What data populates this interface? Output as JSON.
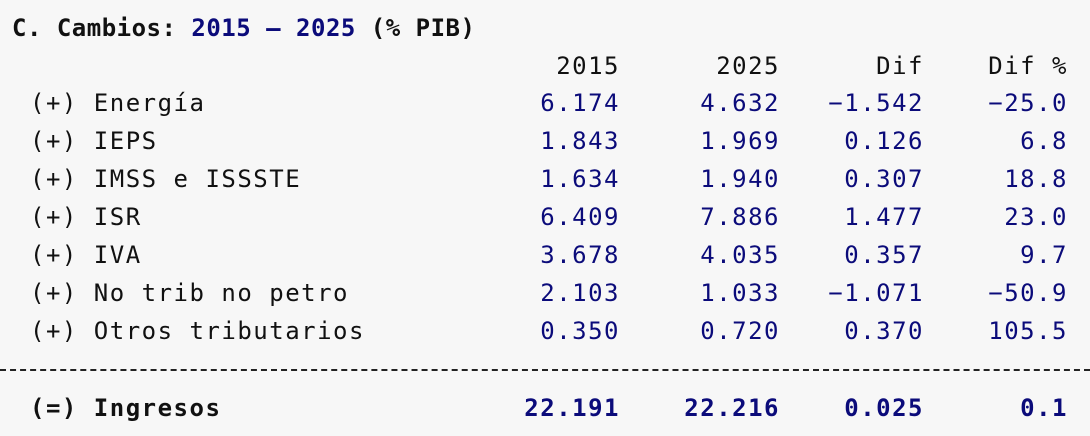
{
  "title": {
    "prefix": "C. Cambios: ",
    "year_from": "2015",
    "dash": " – ",
    "year_to": "2025",
    "suffix": " (% PIB)"
  },
  "columns": [
    "2015",
    "2025",
    "Dif",
    "Dif %"
  ],
  "rows": [
    {
      "label": "(+) Energía",
      "v2015": "6.174",
      "v2025": "4.632",
      "dif": "−1.542",
      "difpct": "−25.0"
    },
    {
      "label": "(+) IEPS",
      "v2015": "1.843",
      "v2025": "1.969",
      "dif": "0.126",
      "difpct": "6.8"
    },
    {
      "label": "(+) IMSS e ISSSTE",
      "v2015": "1.634",
      "v2025": "1.940",
      "dif": "0.307",
      "difpct": "18.8"
    },
    {
      "label": "(+) ISR",
      "v2015": "6.409",
      "v2025": "7.886",
      "dif": "1.477",
      "difpct": "23.0"
    },
    {
      "label": "(+) IVA",
      "v2015": "3.678",
      "v2025": "4.035",
      "dif": "0.357",
      "difpct": "9.7"
    },
    {
      "label": "(+) No trib no petro",
      "v2015": "2.103",
      "v2025": "1.033",
      "dif": "−1.071",
      "difpct": "−50.9"
    },
    {
      "label": "(+) Otros tributarios",
      "v2015": "0.350",
      "v2025": "0.720",
      "dif": "0.370",
      "difpct": "105.5"
    }
  ],
  "total": {
    "label": "(=) Ingresos",
    "v2015": "22.191",
    "v2025": "22.216",
    "dif": "0.025",
    "difpct": "0.1"
  },
  "colors": {
    "value": "#0b0b7a",
    "text": "#111111",
    "background": "#f7f7f7"
  }
}
